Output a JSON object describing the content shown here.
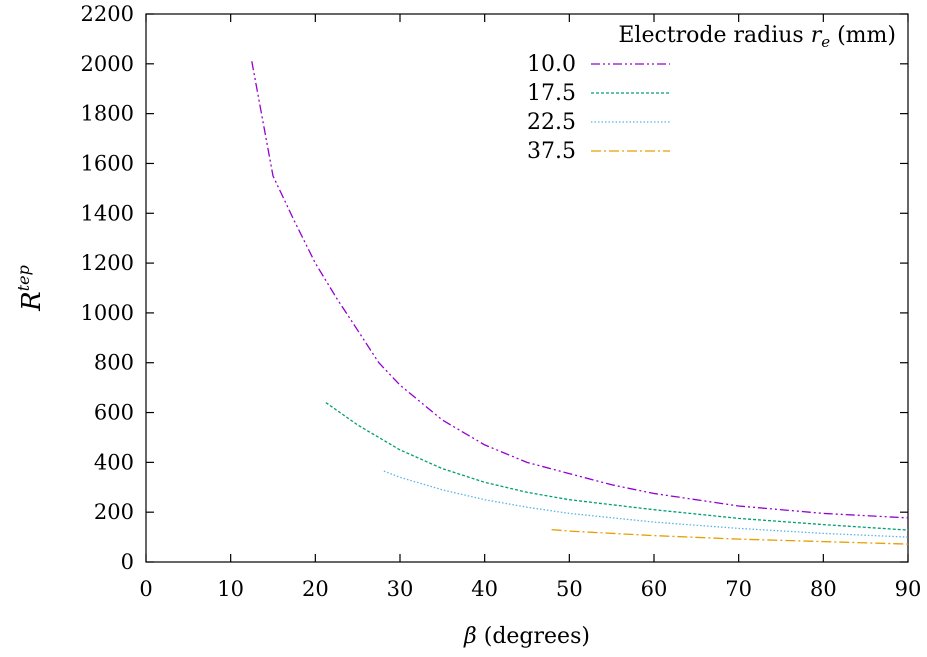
{
  "chart_data": {
    "type": "line",
    "xlabel_var": "β",
    "xlabel_rest": " (degrees)",
    "ylabel_base": "R",
    "ylabel_sup": "tep",
    "xlim": [
      0,
      90
    ],
    "ylim": [
      0,
      2200
    ],
    "xticks": [
      0,
      10,
      20,
      30,
      40,
      50,
      60,
      70,
      80,
      90
    ],
    "yticks": [
      0,
      200,
      400,
      600,
      800,
      1000,
      1200,
      1400,
      1600,
      1800,
      2000,
      2200
    ],
    "grid": false,
    "legend_position": "top-right",
    "legend_title_text": "Electrode radius ",
    "legend_title_var": "r",
    "legend_title_sub": "e",
    "legend_title_unit": " (mm)",
    "series": [
      {
        "name": "10.0",
        "color": "#9400d3",
        "dash": "9,3,2,3,2,3",
        "x": [
          12.5,
          15,
          17.5,
          20,
          22.5,
          25,
          27.5,
          30,
          35,
          40,
          45,
          50,
          55,
          60,
          70,
          80,
          90
        ],
        "y": [
          2010,
          1550,
          1370,
          1200,
          1060,
          930,
          800,
          710,
          570,
          470,
          400,
          355,
          310,
          275,
          225,
          195,
          177
        ]
      },
      {
        "name": "17.5",
        "color": "#009e73",
        "dash": "3,2",
        "x": [
          21.25,
          25,
          30,
          35,
          40,
          45,
          50,
          60,
          70,
          80,
          90
        ],
        "y": [
          640,
          550,
          450,
          375,
          320,
          280,
          250,
          210,
          175,
          150,
          128
        ]
      },
      {
        "name": "22.5",
        "color": "#56b4e9",
        "dash": "1.5,2",
        "x": [
          28.1,
          30,
          35,
          40,
          45,
          50,
          60,
          70,
          80,
          90
        ],
        "y": [
          365,
          340,
          290,
          250,
          220,
          195,
          160,
          135,
          115,
          100
        ]
      },
      {
        "name": "37.5",
        "color": "#e69f00",
        "dash": "10,3,2,3",
        "x": [
          47.9,
          50,
          60,
          70,
          80,
          90
        ],
        "y": [
          130,
          124,
          106,
          92,
          82,
          72
        ]
      }
    ]
  }
}
